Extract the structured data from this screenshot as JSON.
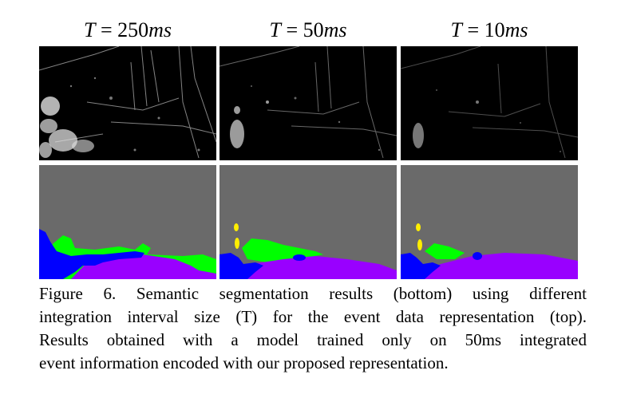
{
  "figure": {
    "columns": [
      {
        "var": "T",
        "eq": " = ",
        "value": "250",
        "unit": "ms"
      },
      {
        "var": "T",
        "eq": " = ",
        "value": "50",
        "unit": "ms"
      },
      {
        "var": "T",
        "eq": " = ",
        "value": "10",
        "unit": "ms"
      }
    ],
    "colors": {
      "event_background": "#000000",
      "sky": "#6a6a6a",
      "ground": "#9900ff",
      "vegetation": "#00ff00",
      "vehicle": "#0000ff",
      "sign": "#ffee00"
    }
  },
  "caption": {
    "lines": [
      "Figure 6. Semantic segmentation results (bottom) using different",
      "integration interval size (T) for the event data representation (top).",
      "Results obtained with a model trained only on 50ms integrated",
      "event information encoded with our proposed representation."
    ]
  }
}
